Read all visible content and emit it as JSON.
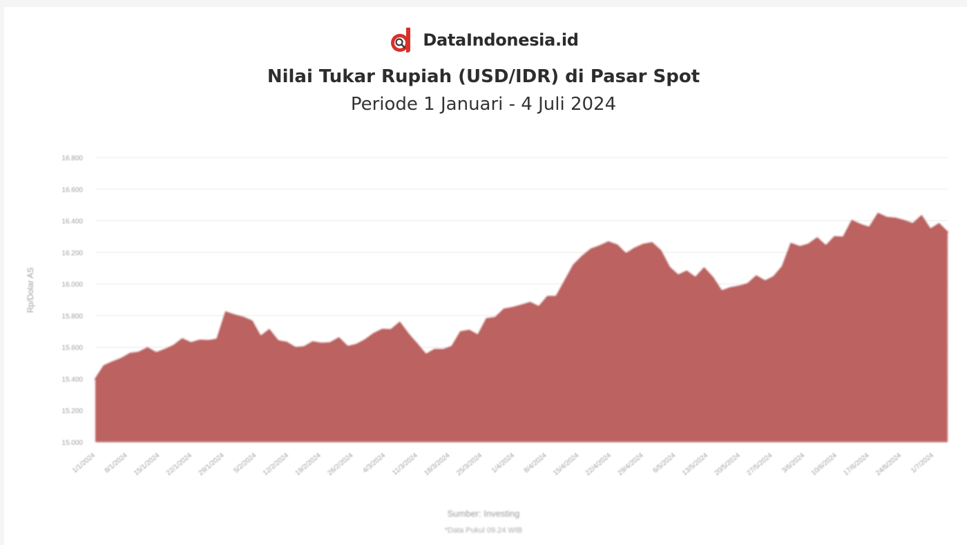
{
  "brand": {
    "name": "DataIndonesia.id",
    "logo_icon": "dataindonesia-logo-icon"
  },
  "colors": {
    "area_fill": "#bc6462",
    "area_stroke": "#b35a58",
    "logo_red": "#d9302a"
  },
  "chart_data": {
    "type": "area",
    "title": "Nilai Tukar Rupiah (USD/IDR) di Pasar Spot",
    "subtitle": "Periode 1 Januari - 4 Juli 2024",
    "ylabel": "Rp/Dolar AS",
    "xlabel": "",
    "ylim": [
      15000,
      16800
    ],
    "grid": true,
    "legend": "none",
    "yticks": [
      "15.000",
      "15.200",
      "15.400",
      "15.600",
      "15.800",
      "16.000",
      "16.200",
      "16.400",
      "16.600",
      "16.800"
    ],
    "xticks": [
      "1/1/2024",
      "8/1/2024",
      "15/1/2024",
      "22/1/2024",
      "29/1/2024",
      "5/2/2024",
      "12/2/2024",
      "19/2/2024",
      "26/2/2024",
      "4/3/2024",
      "11/3/2024",
      "18/3/2024",
      "25/3/2024",
      "1/4/2024",
      "8/4/2024",
      "15/4/2024",
      "22/4/2024",
      "29/4/2024",
      "6/5/2024",
      "13/5/2024",
      "20/5/2024",
      "27/5/2024",
      "3/6/2024",
      "10/6/2024",
      "17/6/2024",
      "24/6/2024",
      "1/7/2024"
    ],
    "values": [
      15397,
      15482,
      15507,
      15528,
      15560,
      15567,
      15595,
      15564,
      15585,
      15610,
      15652,
      15627,
      15643,
      15641,
      15650,
      15822,
      15803,
      15788,
      15765,
      15667,
      15710,
      15640,
      15630,
      15597,
      15601,
      15633,
      15624,
      15627,
      15658,
      15604,
      15616,
      15645,
      15685,
      15712,
      15710,
      15756,
      15682,
      15620,
      15553,
      15585,
      15584,
      15604,
      15697,
      15706,
      15675,
      15780,
      15787,
      15840,
      15850,
      15865,
      15882,
      15855,
      15920,
      15921,
      16020,
      16120,
      16175,
      16220,
      16240,
      16265,
      16245,
      16190,
      16225,
      16250,
      16260,
      16210,
      16105,
      16055,
      16080,
      16040,
      16100,
      16040,
      15955,
      15975,
      15985,
      16000,
      16050,
      16018,
      16045,
      16110,
      16255,
      16235,
      16251,
      16290,
      16240,
      16298,
      16295,
      16400,
      16375,
      16357,
      16445,
      16420,
      16415,
      16400,
      16380,
      16430,
      16345,
      16380,
      16327
    ]
  },
  "source": "Sumber: Investing",
  "note": "*Data Pukul 09.24 WIB"
}
